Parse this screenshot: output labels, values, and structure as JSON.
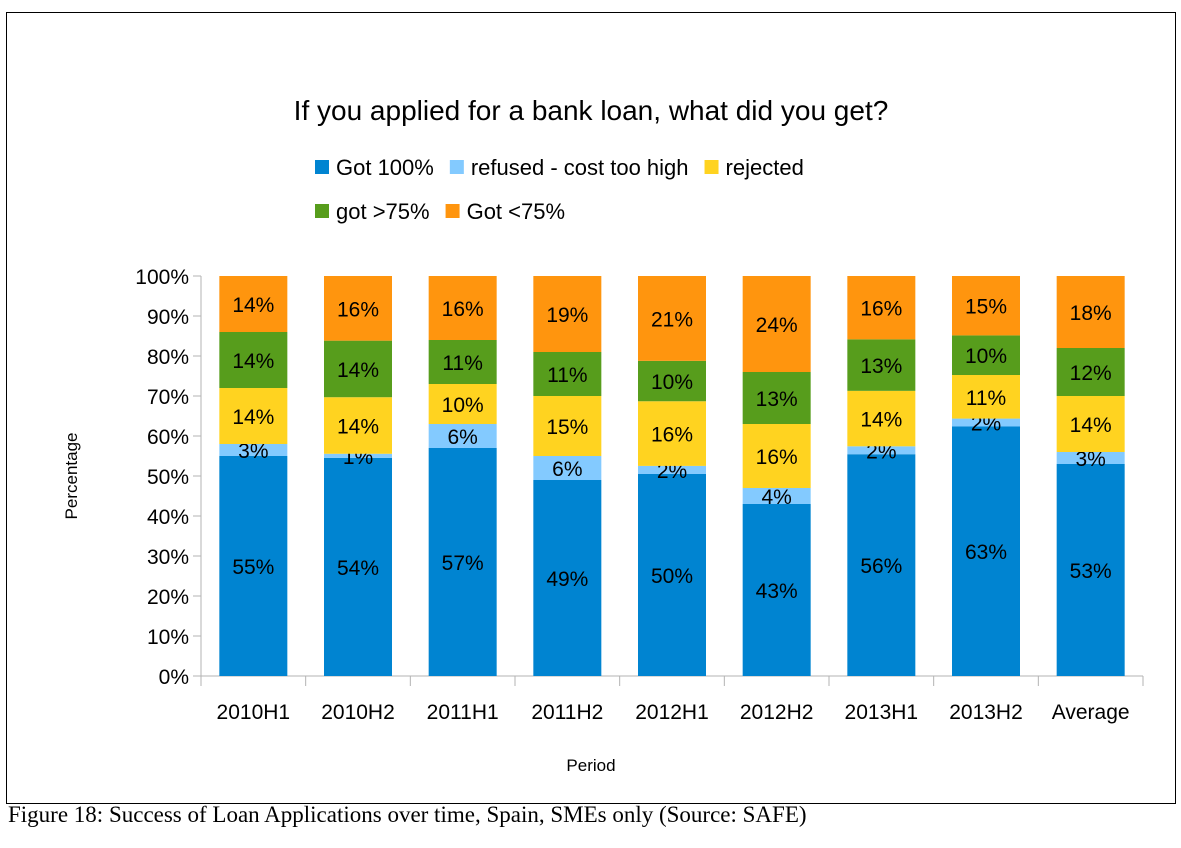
{
  "chart_data": {
    "type": "bar",
    "stacked": true,
    "title": "If you applied for a bank loan, what did you get?",
    "xlabel": "Period",
    "ylabel": "Percentage",
    "ylim": [
      0,
      100
    ],
    "ytick_labels": [
      "0%",
      "10%",
      "20%",
      "30%",
      "40%",
      "50%",
      "60%",
      "70%",
      "80%",
      "90%",
      "100%"
    ],
    "grid": false,
    "legend_position": "top",
    "categories": [
      "2010H1",
      "2010H2",
      "2011H1",
      "2011H2",
      "2012H1",
      "2012H2",
      "2013H1",
      "2013H2",
      "Average"
    ],
    "series": [
      {
        "name": "Got 100%",
        "color": "#0084d1",
        "values": [
          55,
          54,
          57,
          49,
          50,
          43,
          56,
          63,
          53
        ],
        "labels": [
          "55%",
          "54%",
          "57%",
          "49%",
          "50%",
          "43%",
          "56%",
          "63%",
          "53%"
        ]
      },
      {
        "name": "refused - cost too high",
        "color": "#83caff",
        "values": [
          3,
          1,
          6,
          6,
          2,
          4,
          2,
          2,
          3
        ],
        "labels": [
          "3%",
          "1%",
          "6%",
          "6%",
          "2%",
          "4%",
          "2%",
          "2%",
          "3%"
        ]
      },
      {
        "name": "rejected",
        "color": "#ffd320",
        "values": [
          14,
          14,
          10,
          15,
          16,
          16,
          14,
          11,
          14
        ],
        "labels": [
          "14%",
          "14%",
          "10%",
          "15%",
          "16%",
          "16%",
          "14%",
          "11%",
          "14%"
        ]
      },
      {
        "name": "got >75%",
        "color": "#579d1c",
        "values": [
          14,
          14,
          11,
          11,
          10,
          13,
          13,
          10,
          12
        ],
        "labels": [
          "14%",
          "14%",
          "11%",
          "11%",
          "10%",
          "13%",
          "13%",
          "10%",
          "12%"
        ]
      },
      {
        "name": "Got <75%",
        "color": "#ff950e",
        "values": [
          14,
          16,
          16,
          19,
          21,
          24,
          16,
          15,
          18
        ],
        "labels": [
          "14%",
          "16%",
          "16%",
          "19%",
          "21%",
          "24%",
          "16%",
          "15%",
          "18%"
        ]
      }
    ]
  },
  "caption": "Figure 18: Success of Loan Applications over time, Spain, SMEs only (Source: SAFE)"
}
